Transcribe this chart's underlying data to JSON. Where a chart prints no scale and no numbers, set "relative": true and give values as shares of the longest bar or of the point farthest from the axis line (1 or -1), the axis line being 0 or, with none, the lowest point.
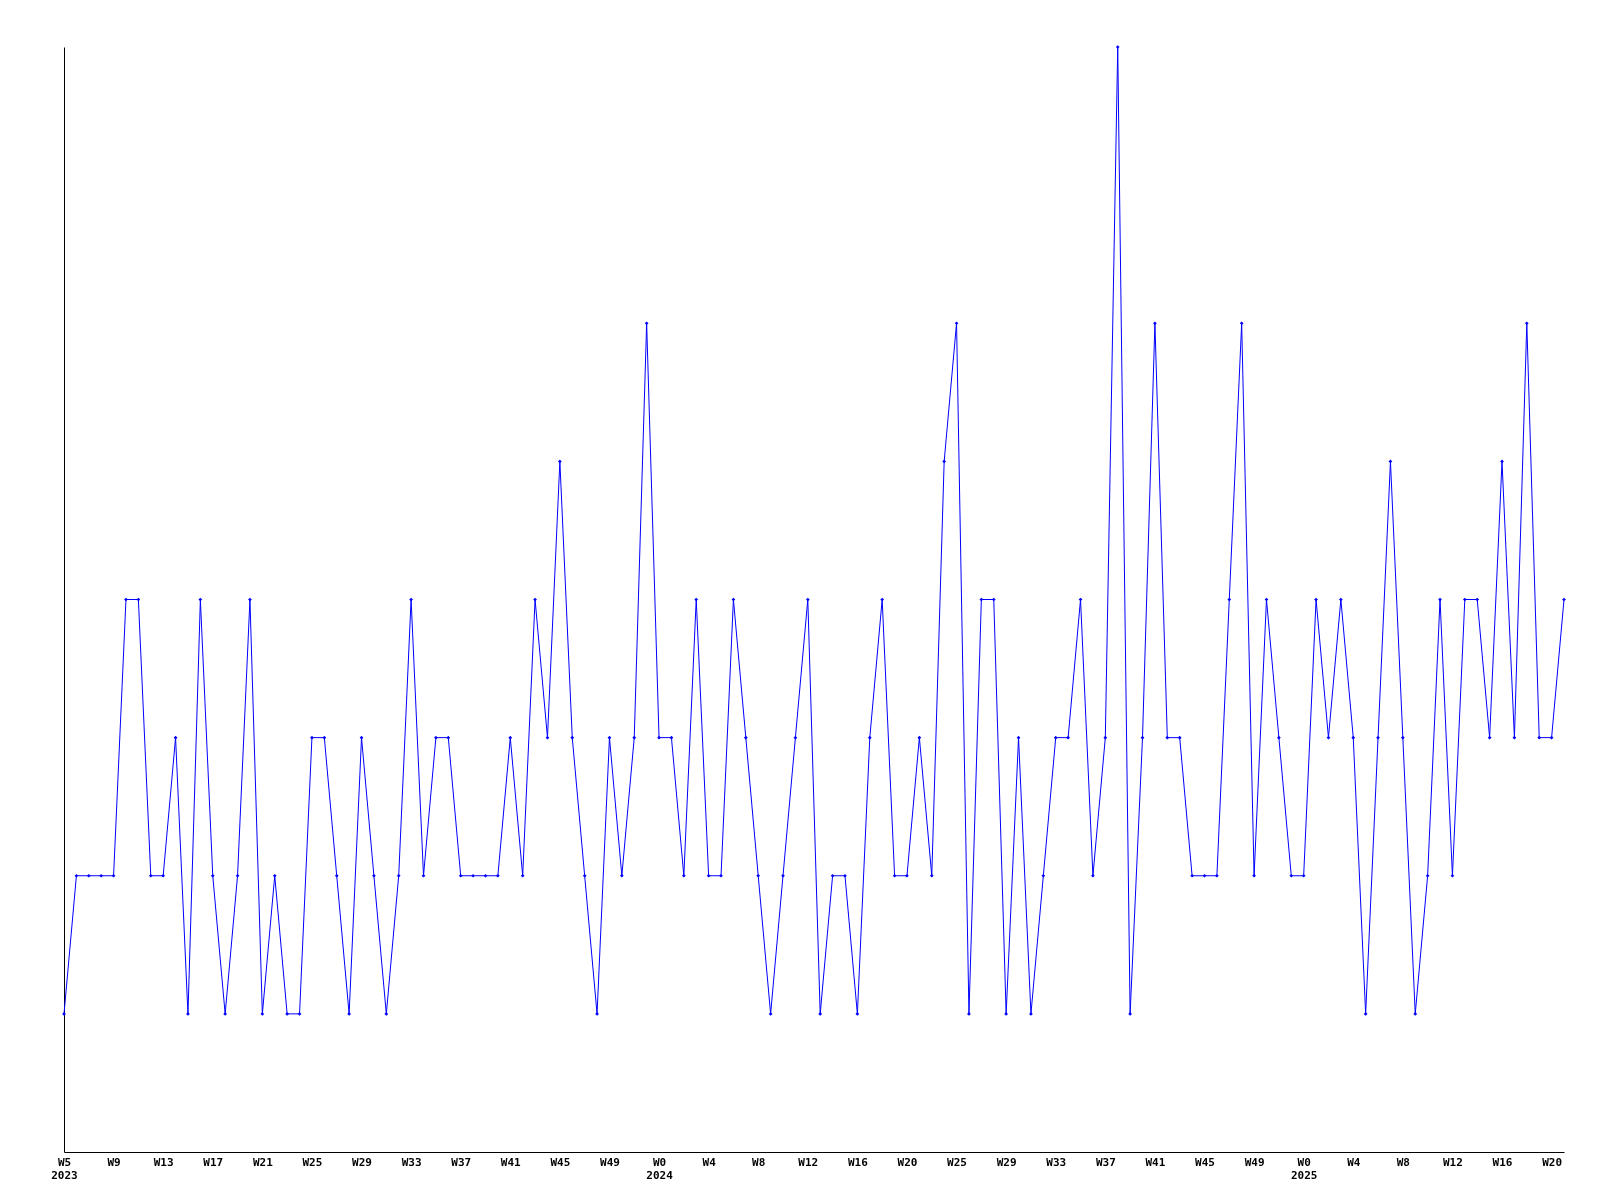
{
  "chart_data": {
    "type": "line",
    "relative": true,
    "marker": "diamond",
    "line_style": "solid",
    "grid": false,
    "categories": [
      "W5\n2023",
      null,
      null,
      null,
      "W9",
      null,
      null,
      null,
      "W13",
      null,
      null,
      null,
      "W17",
      null,
      null,
      null,
      "W21",
      null,
      null,
      null,
      "W25",
      null,
      null,
      null,
      "W29",
      null,
      null,
      null,
      "W33",
      null,
      null,
      null,
      "W37",
      null,
      null,
      null,
      "W41",
      null,
      null,
      null,
      "W45",
      null,
      null,
      null,
      "W49",
      null,
      null,
      null,
      "W0\n2024",
      null,
      null,
      null,
      "W4",
      null,
      null,
      null,
      "W8",
      null,
      null,
      null,
      "W12",
      null,
      null,
      null,
      "W16",
      null,
      null,
      null,
      "W20",
      null,
      null,
      null,
      "W25",
      null,
      null,
      null,
      "W29",
      null,
      null,
      null,
      "W33",
      null,
      null,
      null,
      "W37",
      null,
      null,
      null,
      "W41",
      null,
      null,
      null,
      "W45",
      null,
      null,
      null,
      "W49",
      null,
      null,
      null,
      "W0\n2025",
      null,
      null,
      null,
      "W4",
      null,
      null,
      null,
      "W8",
      null,
      null,
      null,
      "W12",
      null,
      null,
      null,
      "W16",
      null,
      null,
      null,
      "W20",
      null
    ],
    "series": [
      {
        "color": "#0000ff",
        "values": [
          0.125,
          0.25,
          0.25,
          0.25,
          0.25,
          0.5,
          0.5,
          0.25,
          0.25,
          0.375,
          0.125,
          0.5,
          0.25,
          0.125,
          0.25,
          0.5,
          0.125,
          0.25,
          0.125,
          0.125,
          0.375,
          0.375,
          0.25,
          0.125,
          0.375,
          0.25,
          0.125,
          0.25,
          0.5,
          0.25,
          0.375,
          0.375,
          0.25,
          0.25,
          0.25,
          0.25,
          0.375,
          0.25,
          0.5,
          0.375,
          0.625,
          0.375,
          0.25,
          0.125,
          0.375,
          0.25,
          0.375,
          0.75,
          0.375,
          0.375,
          0.25,
          0.5,
          0.25,
          0.25,
          0.5,
          0.375,
          0.25,
          0.125,
          0.25,
          0.375,
          0.5,
          0.125,
          0.25,
          0.25,
          0.125,
          0.375,
          0.5,
          0.25,
          0.25,
          0.375,
          0.25,
          0.625,
          0.75,
          0.125,
          0.5,
          0.5,
          0.125,
          0.375,
          0.125,
          0.25,
          0.375,
          0.375,
          0.5,
          0.25,
          0.375,
          1,
          0.125,
          0.375,
          0.75,
          0.375,
          0.375,
          0.25,
          0.25,
          0.25,
          0.5,
          0.75,
          0.25,
          0.5,
          0.375,
          0.25,
          0.25,
          0.5,
          0.375,
          0.5,
          0.375,
          0.125,
          0.375,
          0.625,
          0.375,
          0.125,
          0.25,
          0.5,
          0.25,
          0.5,
          0.5,
          0.375,
          0.625,
          0.375,
          0.75,
          0.375,
          0.375,
          0.5
        ]
      }
    ]
  }
}
